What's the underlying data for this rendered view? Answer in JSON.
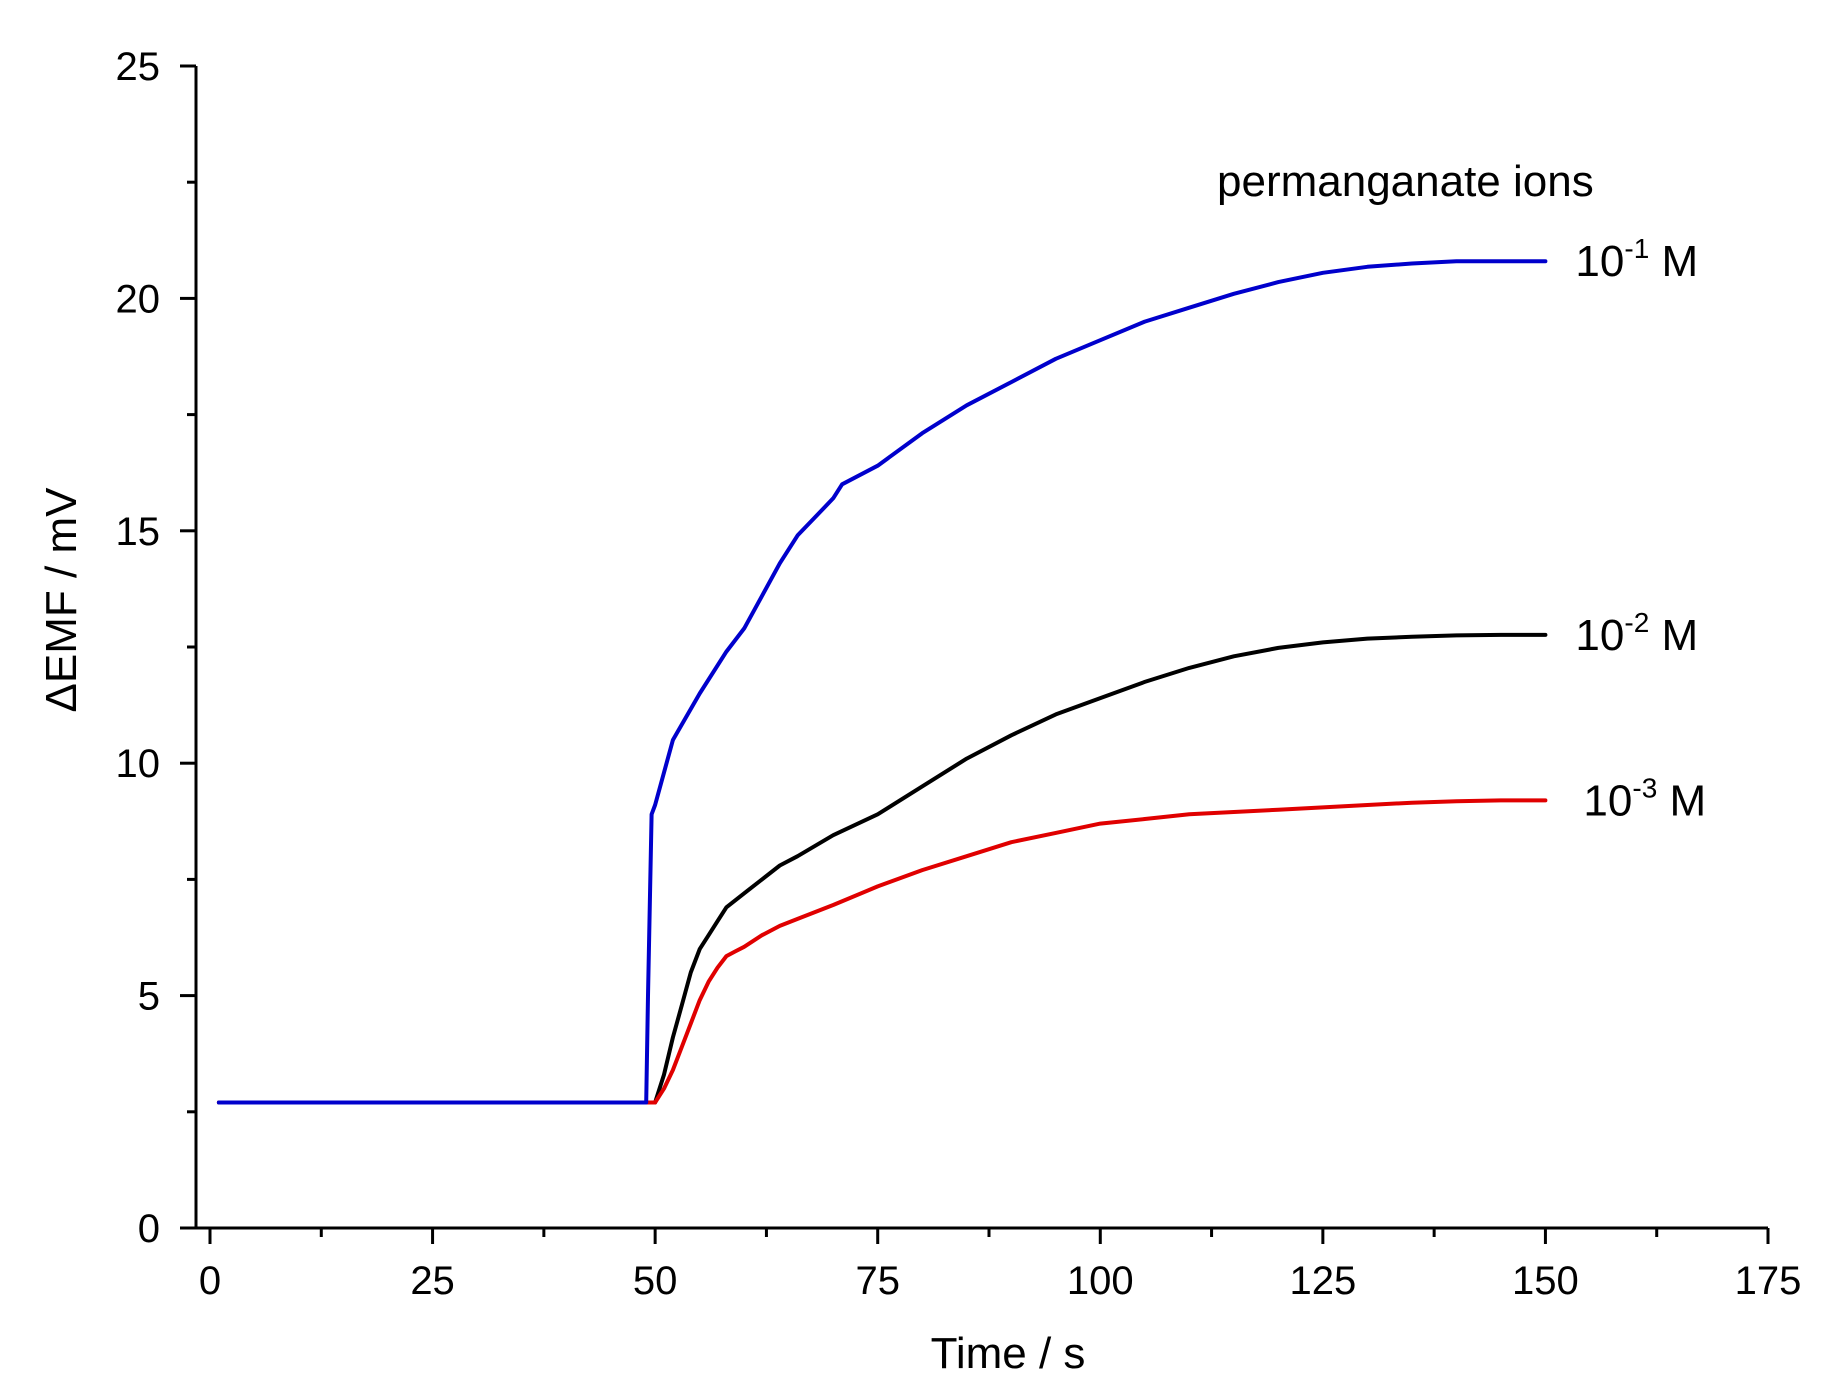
{
  "chart_data": {
    "type": "line",
    "title": "",
    "xlabel": "Time / s",
    "ylabel": "ΔEMF / mV",
    "xlim": [
      0,
      175
    ],
    "ylim": [
      0,
      25
    ],
    "xticks": [
      0,
      25,
      50,
      75,
      100,
      125,
      150,
      175
    ],
    "yticks": [
      0,
      5,
      10,
      15,
      20,
      25
    ],
    "xtick_labels": [
      "0",
      "25",
      "50",
      "75",
      "100",
      "125",
      "150",
      "175"
    ],
    "ytick_labels": [
      "0",
      "5",
      "10",
      "15",
      "20",
      "25"
    ],
    "grid": false,
    "annotation": "permanganate ions",
    "series": [
      {
        "name": "10-1 M",
        "label_base": "10",
        "label_exp": "-1",
        "label_unit": " M",
        "color": "#0000cc",
        "x": [
          1,
          49,
          49.2,
          49.6,
          50,
          52,
          55,
          58,
          60,
          62,
          64,
          66,
          68,
          70,
          71,
          75,
          80,
          85,
          90,
          95,
          100,
          105,
          110,
          115,
          120,
          125,
          130,
          135,
          140,
          145,
          150
        ],
        "y": [
          2.7,
          2.7,
          5,
          8.9,
          9.1,
          10.5,
          11.5,
          12.4,
          12.9,
          13.6,
          14.3,
          14.9,
          15.3,
          15.7,
          16,
          16.4,
          17.1,
          17.7,
          18.2,
          18.7,
          19.1,
          19.5,
          19.8,
          20.1,
          20.35,
          20.55,
          20.68,
          20.75,
          20.8,
          20.8,
          20.8
        ]
      },
      {
        "name": "10-2 M",
        "label_base": "10",
        "label_exp": "-2",
        "label_unit": " M",
        "color": "#000000",
        "x": [
          1,
          50,
          51,
          52,
          53,
          54,
          55,
          56,
          57,
          58,
          59,
          60,
          62,
          64,
          66,
          70,
          75,
          80,
          85,
          90,
          95,
          100,
          105,
          110,
          115,
          120,
          125,
          130,
          135,
          140,
          145,
          150
        ],
        "y": [
          2.7,
          2.7,
          3.3,
          4.1,
          4.8,
          5.5,
          6,
          6.3,
          6.6,
          6.9,
          7.05,
          7.2,
          7.5,
          7.8,
          8.0,
          8.45,
          8.9,
          9.5,
          10.1,
          10.6,
          11.05,
          11.4,
          11.75,
          12.05,
          12.3,
          12.48,
          12.6,
          12.68,
          12.72,
          12.75,
          12.76,
          12.76
        ]
      },
      {
        "name": "10-3 M",
        "label_base": "10",
        "label_exp": "-3",
        "label_unit": " M",
        "color": "#e00000",
        "x": [
          1,
          50,
          51,
          52,
          53,
          54,
          55,
          56,
          57,
          58,
          59,
          60,
          62,
          64,
          66,
          70,
          75,
          80,
          85,
          90,
          95,
          100,
          105,
          110,
          115,
          120,
          125,
          130,
          135,
          140,
          145,
          150
        ],
        "y": [
          2.7,
          2.7,
          3.0,
          3.4,
          3.9,
          4.4,
          4.9,
          5.3,
          5.6,
          5.85,
          5.95,
          6.05,
          6.3,
          6.5,
          6.65,
          6.95,
          7.35,
          7.7,
          8.0,
          8.3,
          8.5,
          8.7,
          8.8,
          8.9,
          8.95,
          9.0,
          9.05,
          9.1,
          9.15,
          9.18,
          9.2,
          9.2
        ]
      }
    ]
  }
}
